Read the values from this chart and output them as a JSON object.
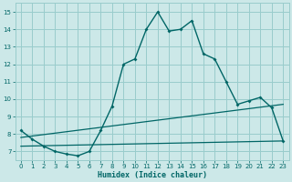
{
  "xlabel": "Humidex (Indice chaleur)",
  "bg_color": "#cce8e8",
  "grid_color": "#99cccc",
  "line_color": "#006666",
  "xlim": [
    -0.5,
    23.5
  ],
  "ylim": [
    6.5,
    15.5
  ],
  "yticks": [
    7,
    8,
    9,
    10,
    11,
    12,
    13,
    14,
    15
  ],
  "xticks": [
    0,
    1,
    2,
    3,
    4,
    5,
    6,
    7,
    8,
    9,
    10,
    11,
    12,
    13,
    14,
    15,
    16,
    17,
    18,
    19,
    20,
    21,
    22,
    23
  ],
  "main_x": [
    0,
    1,
    2,
    3,
    4,
    5,
    6,
    7,
    8,
    9,
    10,
    11,
    12,
    13,
    14,
    15,
    16,
    17,
    18,
    19,
    20,
    21,
    22,
    23
  ],
  "main_y": [
    8.2,
    7.7,
    7.3,
    7.0,
    6.85,
    6.75,
    7.0,
    8.2,
    9.6,
    12.0,
    12.3,
    14.0,
    15.0,
    13.9,
    14.0,
    14.5,
    12.6,
    12.3,
    11.0,
    9.7,
    9.9,
    10.1,
    9.5,
    7.6
  ],
  "line2_x": [
    0,
    23
  ],
  "line2_y": [
    7.3,
    7.6
  ],
  "line3_x": [
    0,
    23
  ],
  "line3_y": [
    7.8,
    9.7
  ],
  "tick_fontsize": 5.0,
  "xlabel_fontsize": 6.0
}
